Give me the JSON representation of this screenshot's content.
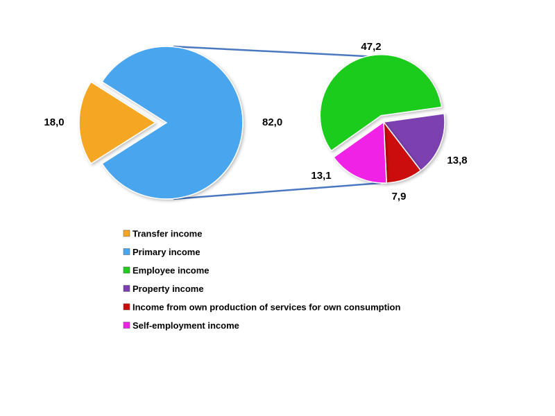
{
  "chart_data": {
    "type": "pie",
    "main_pie": {
      "slices": [
        {
          "label": "Transfer income",
          "value": 18.0,
          "display": "18,0",
          "color": "#f5a623",
          "exploded": true
        },
        {
          "label": "Primary income",
          "value": 82.0,
          "display": "82,0",
          "color": "#4aa6ee",
          "exploded": false
        }
      ]
    },
    "breakdown_pie": {
      "of": "Primary income",
      "slices": [
        {
          "label": "Employee income",
          "value": 47.2,
          "display": "47,2",
          "color": "#1fcc1f"
        },
        {
          "label": "Property income",
          "value": 13.8,
          "display": "13,8",
          "color": "#7b3fb0"
        },
        {
          "label": "Income from own production of services for own consumption",
          "value": 7.9,
          "display": "7,9",
          "color": "#cc0a0a"
        },
        {
          "label": "Self-employment income",
          "value": 13.1,
          "display": "13,1",
          "color": "#f021e6"
        }
      ]
    },
    "legend": {
      "placement": "bottom",
      "items": [
        {
          "label": "Transfer income",
          "color": "#f5a623"
        },
        {
          "label": "Primary income",
          "color": "#4aa6ee"
        },
        {
          "label": "Employee income",
          "color": "#1fcc1f"
        },
        {
          "label": "Property income",
          "color": "#7b3fb0"
        },
        {
          "label": "Income from own production of services for own consumption",
          "color": "#cc0a0a"
        },
        {
          "label": "Self-employment income",
          "color": "#f021e6"
        }
      ]
    },
    "connector_color": "#4a78c0"
  }
}
